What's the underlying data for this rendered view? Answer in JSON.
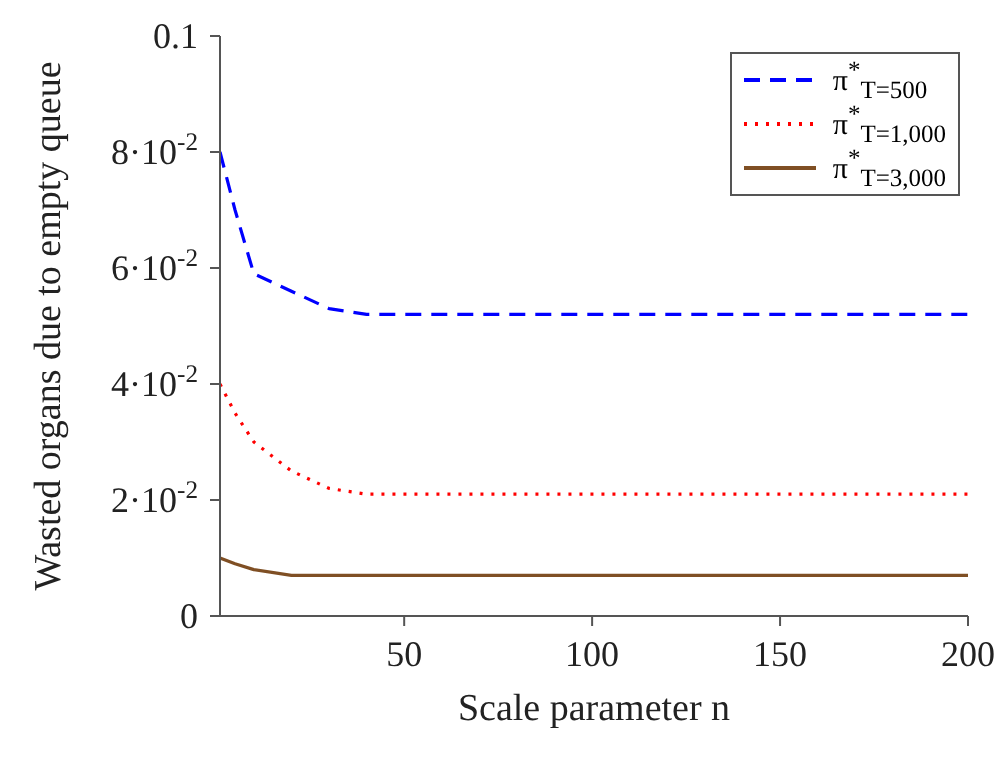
{
  "chart_data": {
    "type": "line",
    "xlabel": "Scale parameter n",
    "ylabel": "Wasted organs due to empty queue",
    "x": [
      1,
      5,
      10,
      20,
      30,
      40,
      50,
      100,
      150,
      200
    ],
    "series": [
      {
        "name": "π$^{*}$$_{T=500}$",
        "color": "#0000ff",
        "line_style": "dashed",
        "values": [
          0.08,
          0.07,
          0.059,
          0.056,
          0.053,
          0.052,
          0.052,
          0.052,
          0.052,
          0.052
        ]
      },
      {
        "name": "π$^{*}$$_{T=1,000}$",
        "color": "#ff0000",
        "line_style": "dotted",
        "values": [
          0.04,
          0.035,
          0.03,
          0.025,
          0.022,
          0.021,
          0.021,
          0.021,
          0.021,
          0.021
        ]
      },
      {
        "name": "π$^{*}$$_{T=3,000}$",
        "color": "#7f4f24",
        "line_style": "solid",
        "values": [
          0.01,
          0.009,
          0.008,
          0.007,
          0.007,
          0.007,
          0.007,
          0.007,
          0.007,
          0.007
        ]
      }
    ],
    "xlim": [
      1,
      200
    ],
    "xticks": [
      50,
      100,
      150,
      200
    ],
    "ylim": [
      0,
      0.1
    ],
    "yticks": [
      0,
      {
        "value": 0.02,
        "label": "2·10$^{-2}$"
      },
      {
        "value": 0.04,
        "label": "4·10$^{-2}$"
      },
      {
        "value": 0.06,
        "label": "6·10$^{-2}$"
      },
      {
        "value": 0.08,
        "label": "8·10$^{-2}$"
      },
      0.1
    ],
    "grid": false,
    "legend": "top right",
    "marker": "none"
  }
}
